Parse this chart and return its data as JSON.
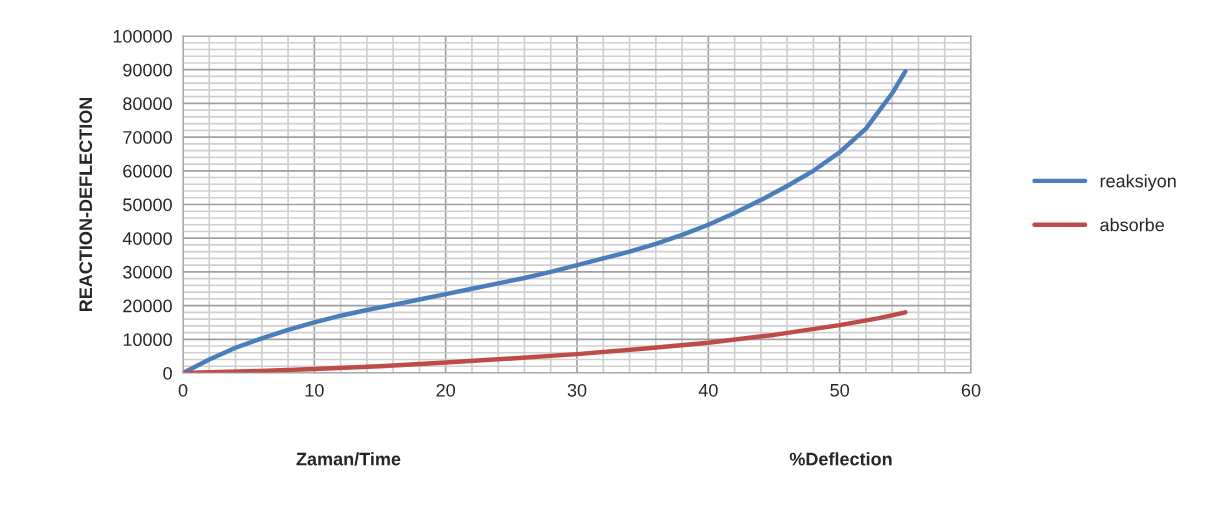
{
  "chart_data": {
    "type": "line",
    "ylabel": "REACTION-DEFLECTION",
    "xlabel": "%Deflection",
    "annotations": [
      "Zaman/Time"
    ],
    "xlim": [
      0,
      60
    ],
    "xticks": [
      0,
      10,
      20,
      30,
      40,
      50,
      60
    ],
    "ylim": [
      0,
      100000
    ],
    "yticks": [
      0,
      10000,
      20000,
      30000,
      40000,
      50000,
      60000,
      70000,
      80000,
      90000,
      100000
    ],
    "grid": true,
    "legend": "right",
    "marker": "none",
    "line_style": "solid",
    "series": [
      {
        "name": "reaksiyon",
        "color": "#4a7ebb",
        "x": [
          0,
          2,
          4,
          6,
          8,
          10,
          12,
          14,
          16,
          18,
          20,
          22,
          24,
          26,
          28,
          30,
          32,
          34,
          36,
          38,
          40,
          42,
          44,
          46,
          48,
          50,
          52,
          54,
          55
        ],
        "values": [
          0,
          4000,
          7500,
          10300,
          12800,
          15000,
          17000,
          18700,
          20200,
          21800,
          23400,
          25000,
          26600,
          28200,
          30000,
          32000,
          34000,
          36000,
          38300,
          41000,
          44000,
          47500,
          51300,
          55500,
          60000,
          65500,
          72500,
          83000,
          89500
        ]
      },
      {
        "name": "absorbe",
        "color": "#be4b48",
        "x": [
          0,
          5,
          10,
          15,
          20,
          25,
          30,
          35,
          40,
          45,
          50,
          53,
          55
        ],
        "values": [
          0,
          500,
          1200,
          2000,
          3100,
          4300,
          5600,
          7200,
          9000,
          11300,
          14200,
          16300,
          18000
        ]
      }
    ]
  }
}
